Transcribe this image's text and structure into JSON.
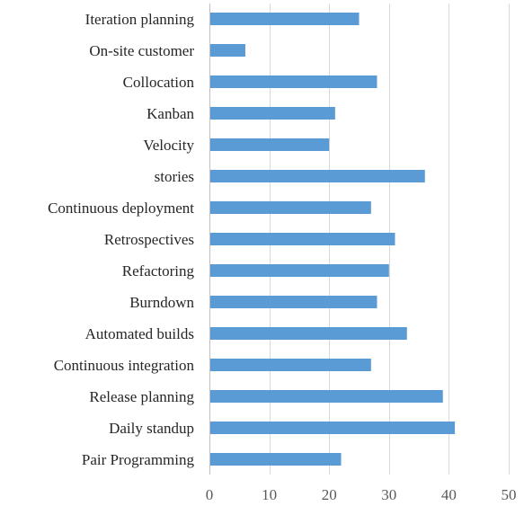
{
  "chart_data": {
    "type": "bar",
    "orientation": "horizontal",
    "title": "",
    "xlabel": "",
    "ylabel": "",
    "categories": [
      "Iteration planning",
      "On-site customer",
      "Collocation",
      "Kanban",
      "Velocity",
      "stories",
      "Continuous deployment",
      "Retrospectives",
      "Refactoring",
      "Burndown",
      "Automated builds",
      "Continuous integration",
      "Release planning",
      "Daily standup",
      "Pair Programming"
    ],
    "values": [
      25,
      6,
      28,
      21,
      20,
      36,
      27,
      31,
      30,
      28,
      33,
      27,
      39,
      41,
      22
    ],
    "xlim": [
      0,
      50
    ],
    "xticks": [
      0,
      10,
      20,
      30,
      40,
      50
    ],
    "grid": "vertical",
    "legend": "none",
    "bar_color": "#5b9bd5",
    "grid_color": "#d9d9d9"
  }
}
